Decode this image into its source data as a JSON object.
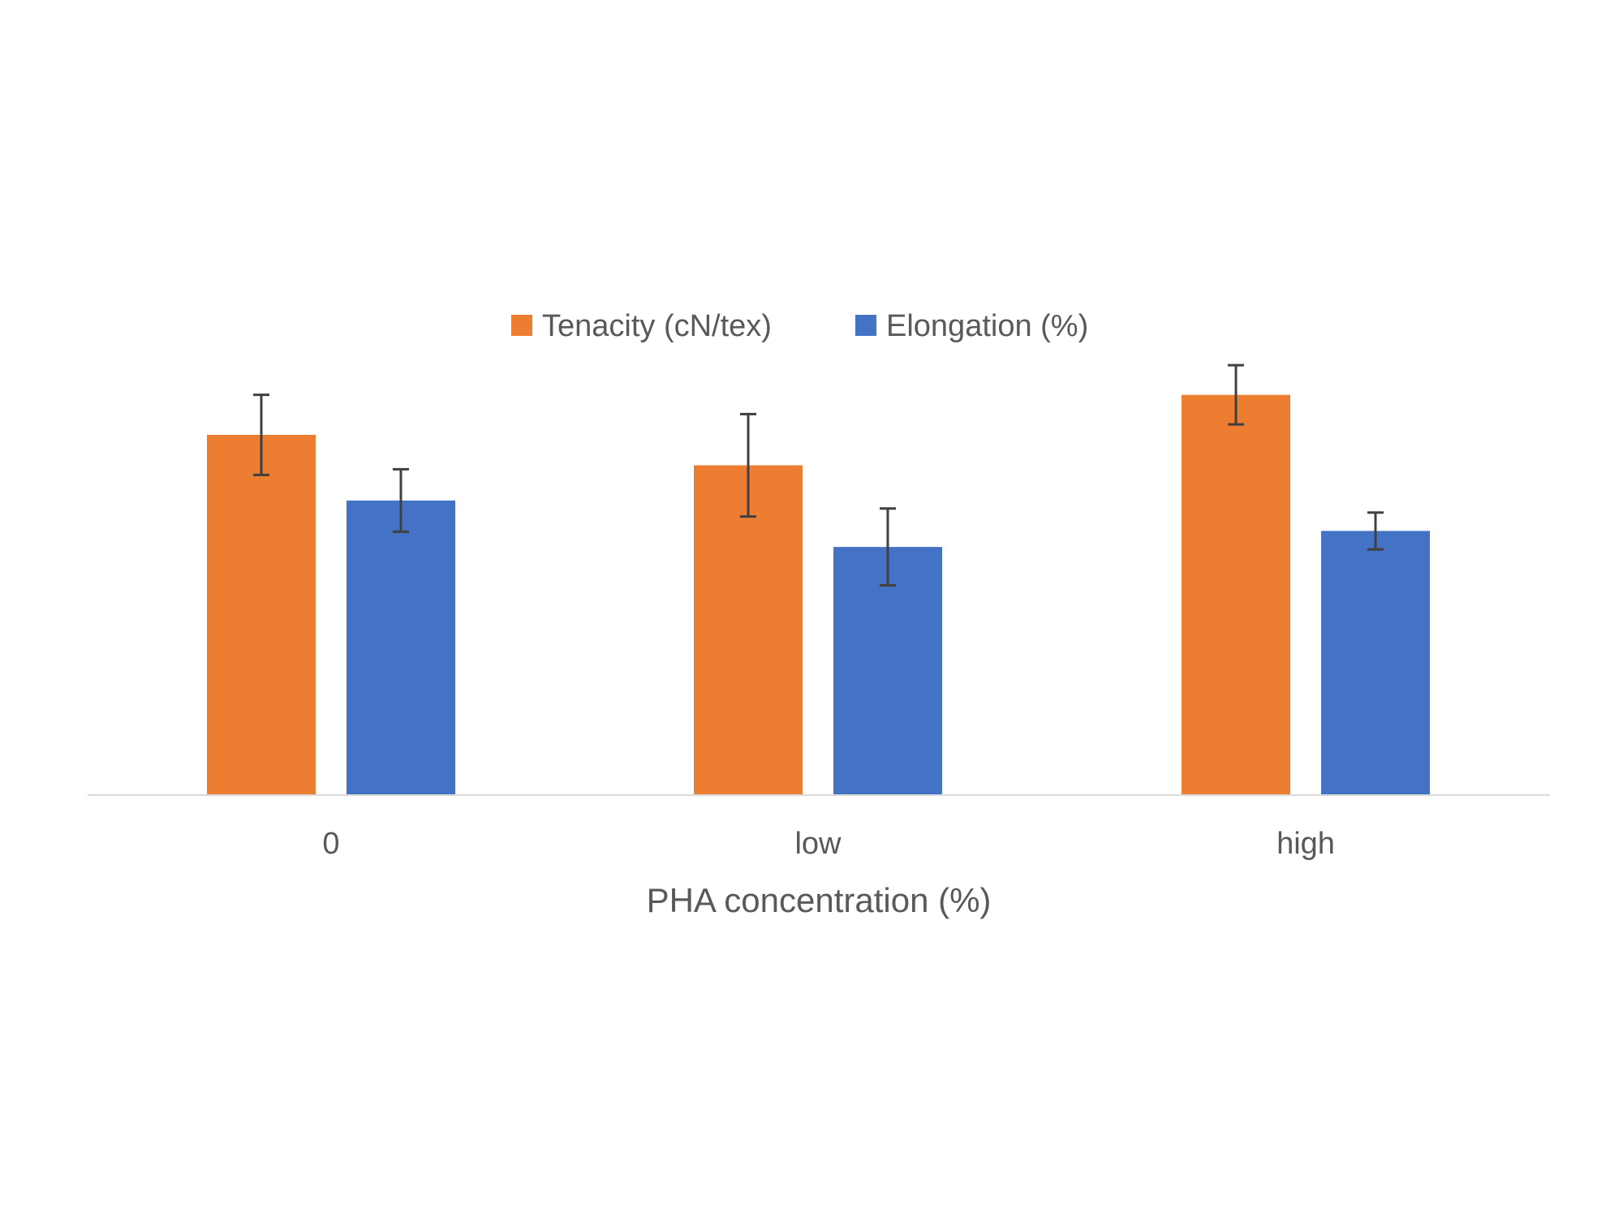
{
  "chart_data": {
    "type": "bar",
    "title": "",
    "xlabel": "PHA concentration (%)",
    "ylabel": "",
    "categories": [
      "0",
      "low",
      "high"
    ],
    "series": [
      {
        "name": "Tenacity (cN/tex)",
        "color": "#ED7D31",
        "values": [
          4.5,
          4.12,
          5.0
        ],
        "errors": [
          0.5,
          0.64,
          0.37
        ]
      },
      {
        "name": "Elongation (%)",
        "color": "#4472C4",
        "values": [
          3.68,
          3.1,
          3.3
        ],
        "errors": [
          0.39,
          0.48,
          0.23
        ]
      }
    ],
    "ylim": [
      0,
      5.25
    ],
    "y_axis_visible": false,
    "grid": false,
    "error_bars": true,
    "error_bar_color": "#404040",
    "axis_line_color": "#D9D9D9",
    "legend_position": "top-center"
  }
}
